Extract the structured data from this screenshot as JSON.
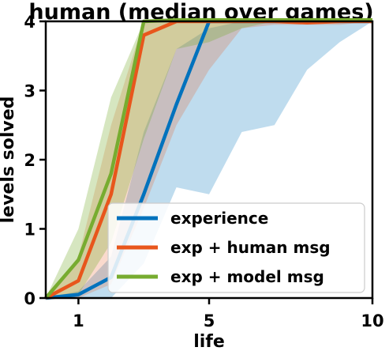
{
  "chart_data": {
    "type": "line",
    "title": "human (median over games)",
    "xlabel": "life",
    "ylabel": "levels solved",
    "xlim": [
      0,
      10
    ],
    "ylim": [
      0,
      4
    ],
    "xticks": [
      1,
      5,
      10
    ],
    "yticks": [
      0,
      1,
      2,
      3,
      4
    ],
    "legend_position": "lower-right",
    "grid": false,
    "series": [
      {
        "name": "experience",
        "color": "#0072bd",
        "band_alpha": 0.25,
        "x": [
          0,
          1,
          2,
          3,
          4,
          5,
          6,
          7,
          8,
          9,
          10
        ],
        "values": [
          0,
          0.05,
          0.3,
          1.5,
          2.8,
          4,
          4,
          4,
          4,
          4,
          4
        ],
        "lower": [
          0,
          0,
          0,
          0.5,
          1.6,
          1.5,
          2.4,
          2.5,
          3.3,
          3.7,
          4
        ],
        "upper": [
          0,
          0.1,
          0.6,
          2.4,
          3.6,
          3.9,
          4,
          4,
          4,
          4,
          4
        ]
      },
      {
        "name": "exp + human msg",
        "color": "#e8561c",
        "band_alpha": 0.22,
        "x": [
          0,
          1,
          2,
          3,
          4,
          5,
          6,
          7,
          8,
          9,
          10
        ],
        "values": [
          0,
          0.25,
          1.5,
          3.8,
          4,
          4,
          4,
          4,
          3.98,
          4,
          4
        ],
        "lower": [
          0,
          0,
          0.2,
          1.3,
          2.5,
          3.3,
          3.9,
          3.95,
          3.95,
          3.95,
          4
        ],
        "upper": [
          0,
          0.6,
          2.5,
          4,
          4,
          4,
          4,
          4,
          4,
          4,
          4
        ]
      },
      {
        "name": "exp + model msg",
        "color": "#77ac30",
        "band_alpha": 0.3,
        "x": [
          0,
          1,
          2,
          3,
          4,
          5,
          6,
          7,
          8,
          9,
          10
        ],
        "values": [
          0,
          0.55,
          1.8,
          4,
          4.02,
          4.02,
          4.02,
          4.02,
          4.02,
          4.02,
          4.02
        ],
        "lower": [
          0,
          0.05,
          0.8,
          2.3,
          3.6,
          3.7,
          3.9,
          4,
          4,
          4,
          4
        ],
        "upper": [
          0,
          1,
          2.9,
          4,
          4,
          4,
          4,
          4,
          4,
          4,
          4
        ]
      }
    ]
  }
}
